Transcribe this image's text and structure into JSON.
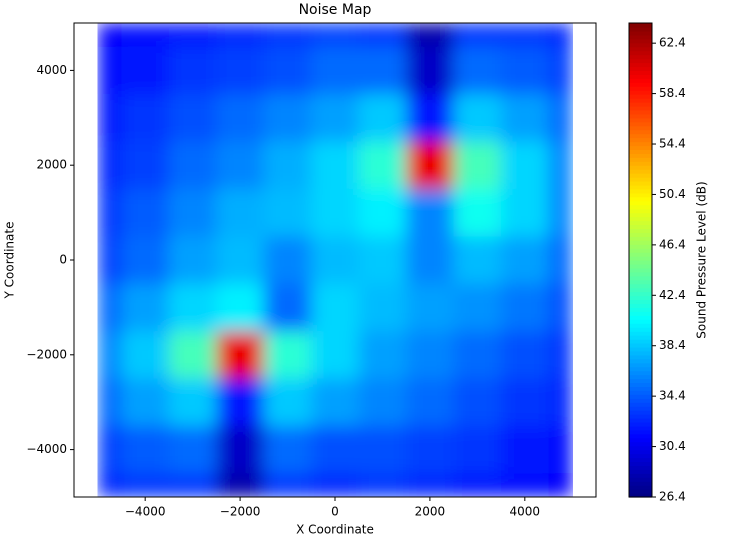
{
  "chart_data": {
    "type": "contour",
    "title": "Noise Map",
    "xlabel": "X Coordinate",
    "ylabel": "Y Coordinate",
    "colorbar_label": "Sound Pressure Level (dB)",
    "colormap": "jet",
    "x": [
      -5000,
      -4000,
      -3000,
      -2000,
      -1000,
      0,
      1000,
      2000,
      3000,
      4000,
      5000
    ],
    "y": [
      5000,
      4000,
      3000,
      2000,
      1000,
      0,
      -1000,
      -2000,
      -3000,
      -4000,
      -5000
    ],
    "z": [
      [
        31,
        31.5,
        32,
        32.5,
        33,
        33.5,
        33,
        28,
        33,
        33,
        32.5
      ],
      [
        31.5,
        32,
        33,
        33.5,
        34,
        35,
        35,
        29,
        35,
        34.5,
        33.5
      ],
      [
        32,
        33,
        34,
        35,
        36,
        37,
        38.5,
        32,
        38.5,
        37,
        35
      ],
      [
        32.5,
        33.5,
        35,
        36,
        37.5,
        39,
        42,
        60,
        43,
        39,
        36
      ],
      [
        33,
        34.5,
        36,
        37.5,
        38,
        39,
        40,
        36,
        41,
        39,
        36
      ],
      [
        33.5,
        35,
        37,
        38,
        36,
        38,
        38.5,
        36,
        38,
        37,
        35
      ],
      [
        35,
        37,
        39,
        40,
        35,
        39,
        38,
        37,
        36.5,
        35.5,
        34
      ],
      [
        36,
        38.5,
        43,
        60,
        42,
        39,
        37,
        36,
        35,
        34,
        33
      ],
      [
        35,
        37,
        38.5,
        32,
        38.5,
        37,
        36,
        35,
        34,
        33,
        32.5
      ],
      [
        33.5,
        34.5,
        35,
        29,
        35,
        34,
        34,
        33.5,
        33,
        32,
        31.5
      ],
      [
        32.5,
        33,
        33,
        28,
        33,
        32.5,
        33,
        32.5,
        32,
        31.5,
        31
      ]
    ],
    "xlim": [
      -5500,
      5500
    ],
    "ylim": [
      -5000,
      5000
    ],
    "xticks": [
      {
        "value": -4000,
        "label": "−4000"
      },
      {
        "value": -2000,
        "label": "−2000"
      },
      0,
      2000,
      4000
    ],
    "yticks": [
      {
        "value": -4000,
        "label": "−4000"
      },
      {
        "value": -2000,
        "label": "−2000"
      },
      0,
      2000,
      4000
    ],
    "clim": [
      26.4,
      64.0
    ],
    "cticks": [
      26.4,
      30.4,
      34.4,
      38.4,
      42.4,
      46.4,
      50.4,
      54.4,
      58.4,
      62.4
    ]
  }
}
